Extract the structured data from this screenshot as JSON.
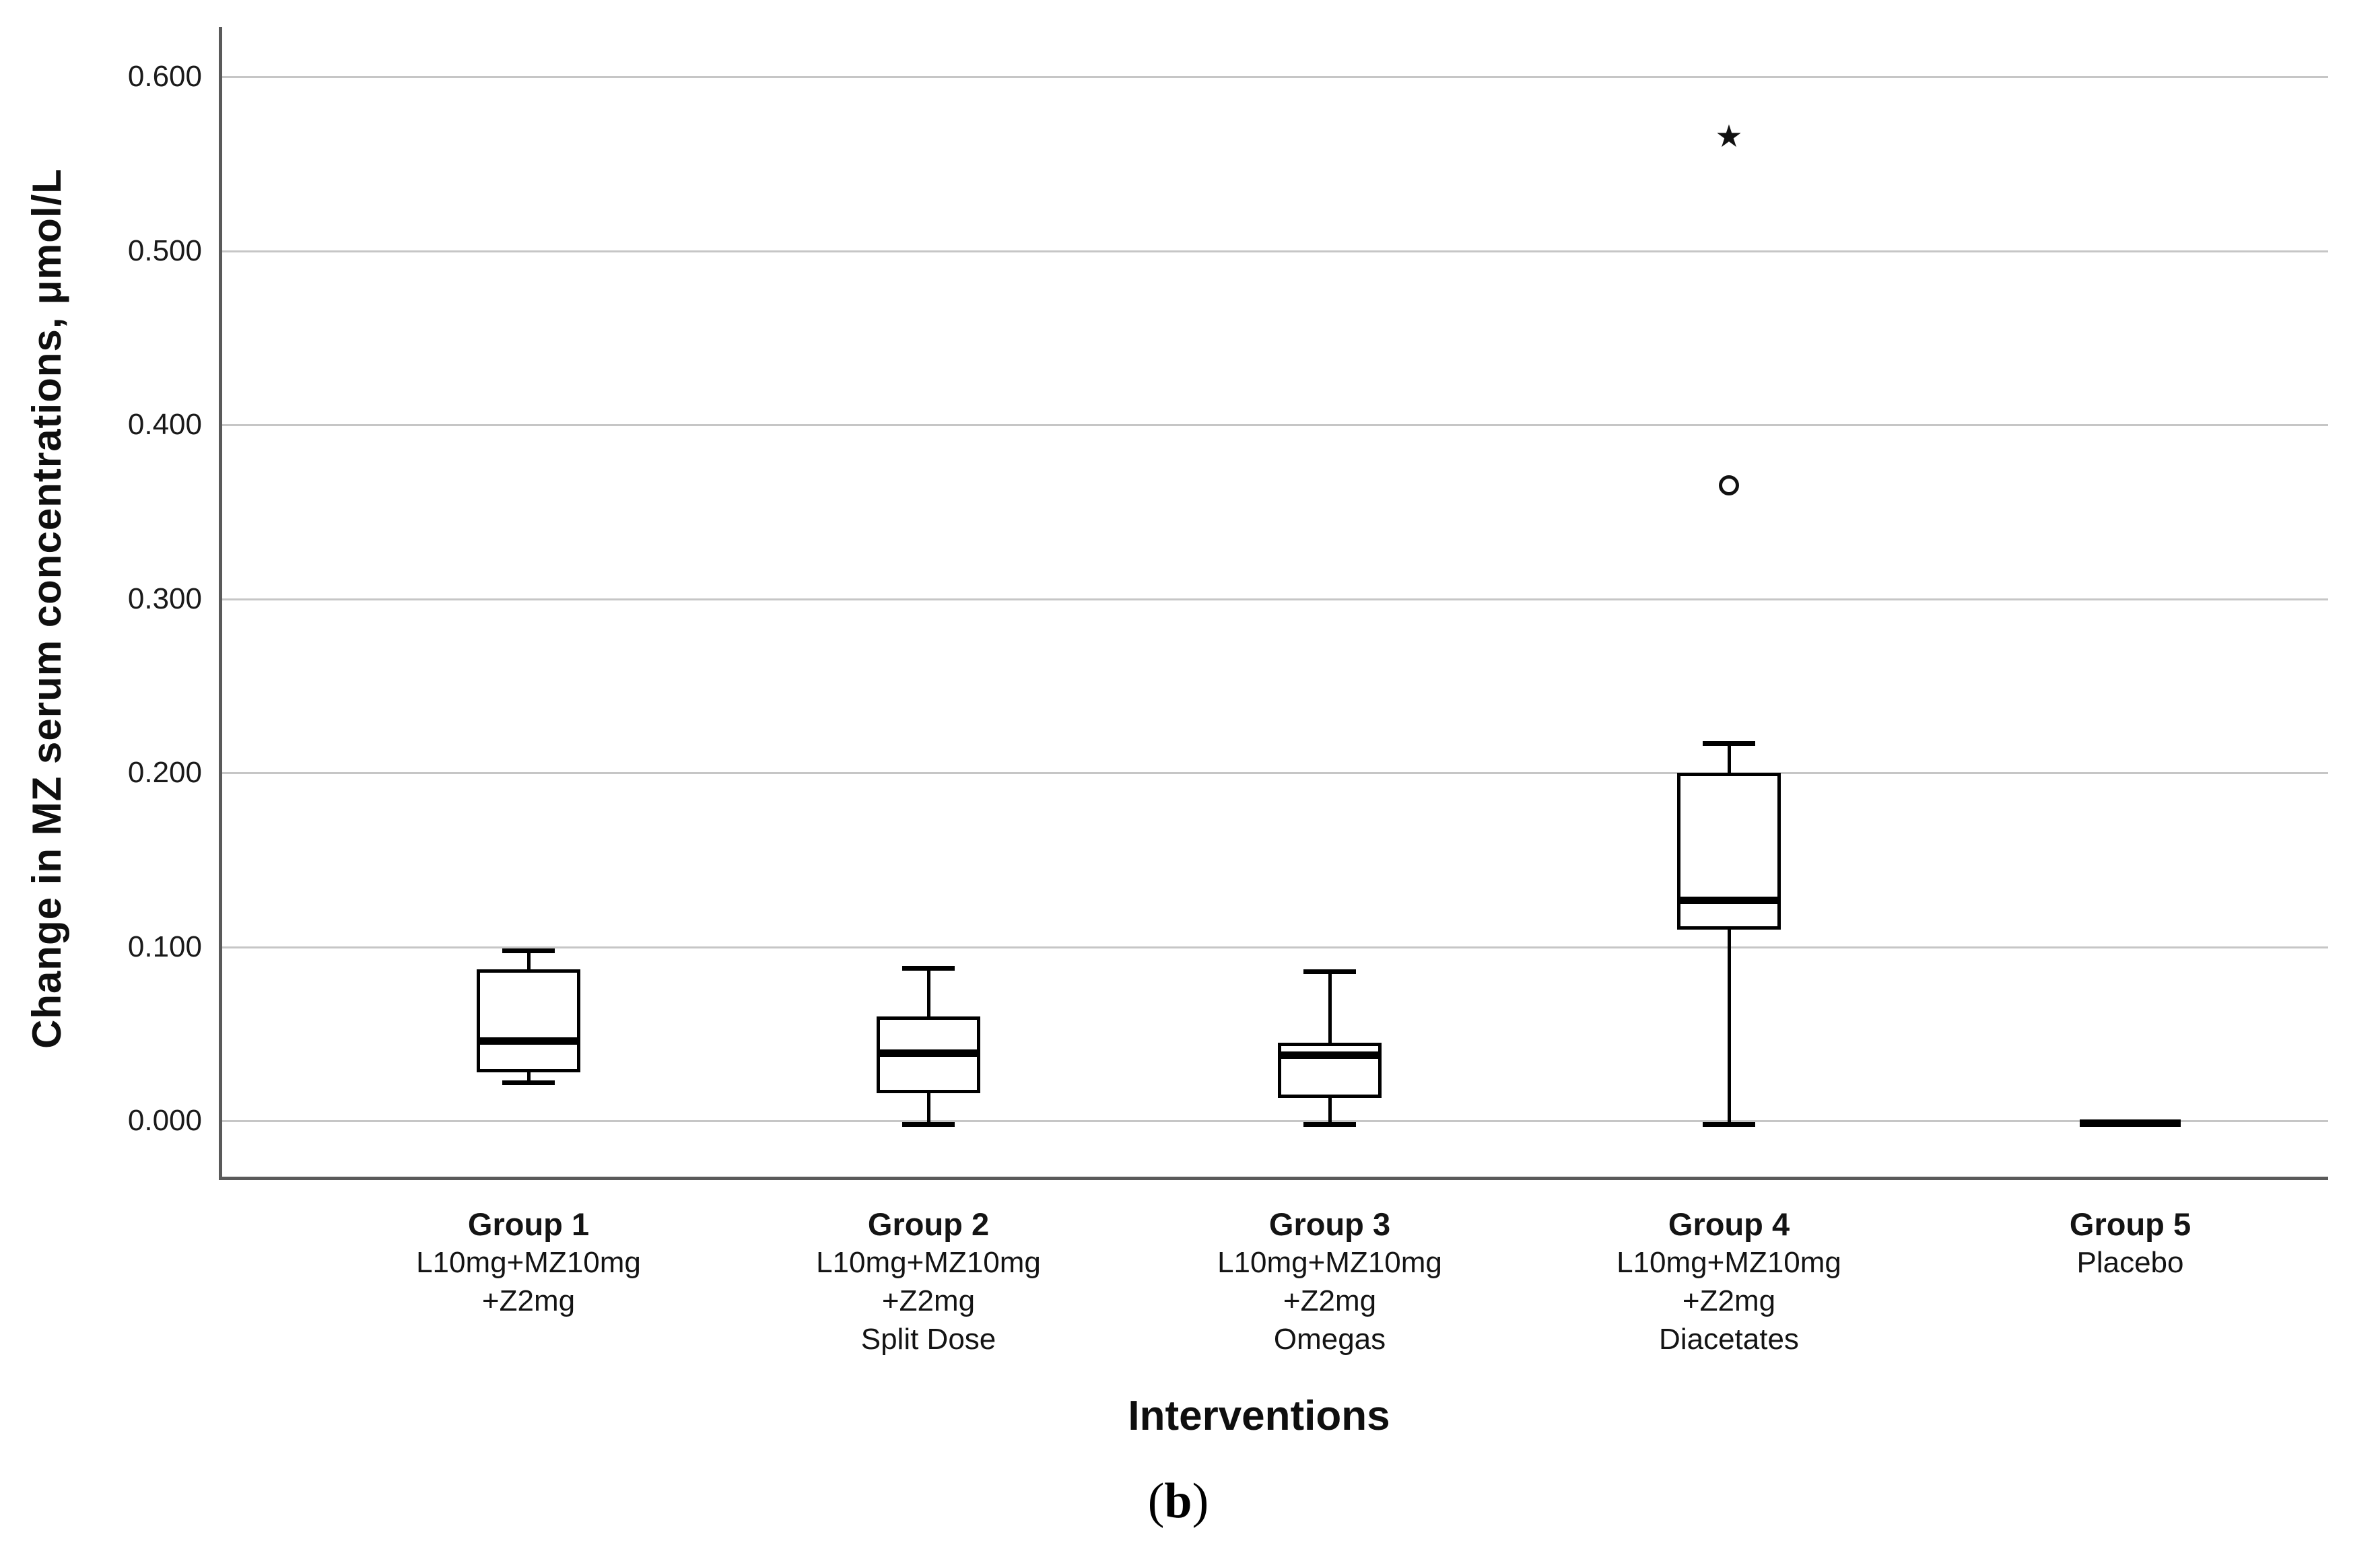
{
  "figure": {
    "caption": {
      "open": "(",
      "letter": "b",
      "close": ")"
    }
  },
  "chart_data": {
    "type": "box",
    "title": "",
    "xlabel": "Interventions",
    "ylabel": "Change in MZ serum concentrations, μmol/L",
    "ylim": [
      -0.033,
      0.628
    ],
    "grid": "horizontal-only",
    "legend": "none",
    "yticks": [
      {
        "value": 0.0,
        "label": "0.000"
      },
      {
        "value": 0.1,
        "label": "0.100"
      },
      {
        "value": 0.2,
        "label": "0.200"
      },
      {
        "value": 0.3,
        "label": "0.300"
      },
      {
        "value": 0.4,
        "label": "0.400"
      },
      {
        "value": 0.5,
        "label": "0.500"
      },
      {
        "value": 0.6,
        "label": "0.600"
      }
    ],
    "categories": [
      {
        "label": "Group 1",
        "sublabels": [
          "L10mg+MZ10mg",
          "+Z2mg"
        ]
      },
      {
        "label": "Group 2",
        "sublabels": [
          "L10mg+MZ10mg",
          "+Z2mg",
          "Split Dose"
        ]
      },
      {
        "label": "Group 3",
        "sublabels": [
          "L10mg+MZ10mg",
          "+Z2mg",
          "Omegas"
        ]
      },
      {
        "label": "Group 4",
        "sublabels": [
          "L10mg+MZ10mg",
          "+Z2mg",
          "Diacetates"
        ]
      },
      {
        "label": "Group 5",
        "sublabels": [
          "Placebo"
        ]
      }
    ],
    "series": [
      {
        "group": "Group 1",
        "whisker_low": 0.022,
        "q1": 0.028,
        "median": 0.046,
        "q3": 0.087,
        "whisker_high": 0.098,
        "outliers": []
      },
      {
        "group": "Group 2",
        "whisker_low": -0.002,
        "q1": 0.016,
        "median": 0.039,
        "q3": 0.06,
        "whisker_high": 0.088,
        "outliers": []
      },
      {
        "group": "Group 3",
        "whisker_low": -0.002,
        "q1": 0.013,
        "median": 0.038,
        "q3": 0.045,
        "whisker_high": 0.086,
        "outliers": []
      },
      {
        "group": "Group 4",
        "whisker_low": -0.002,
        "q1": 0.11,
        "median": 0.127,
        "q3": 0.2,
        "whisker_high": 0.217,
        "outliers": [
          {
            "value": 0.365,
            "marker": "circle"
          },
          {
            "value": 0.566,
            "marker": "star"
          }
        ]
      },
      {
        "group": "Group 5",
        "whisker_low": -0.001,
        "q1": -0.001,
        "median": -0.001,
        "q3": -0.001,
        "whisker_high": -0.001,
        "outliers": [],
        "collapsed_to_median_line": true
      }
    ],
    "marker_glyphs": {
      "star": "★"
    },
    "colors": {
      "background": "#ffffff",
      "box_stroke": "#000000",
      "median": "#000000",
      "gridline": "#c6c6c6",
      "axis_line": "#5a5a5a",
      "text": "#0f0f0f"
    }
  }
}
